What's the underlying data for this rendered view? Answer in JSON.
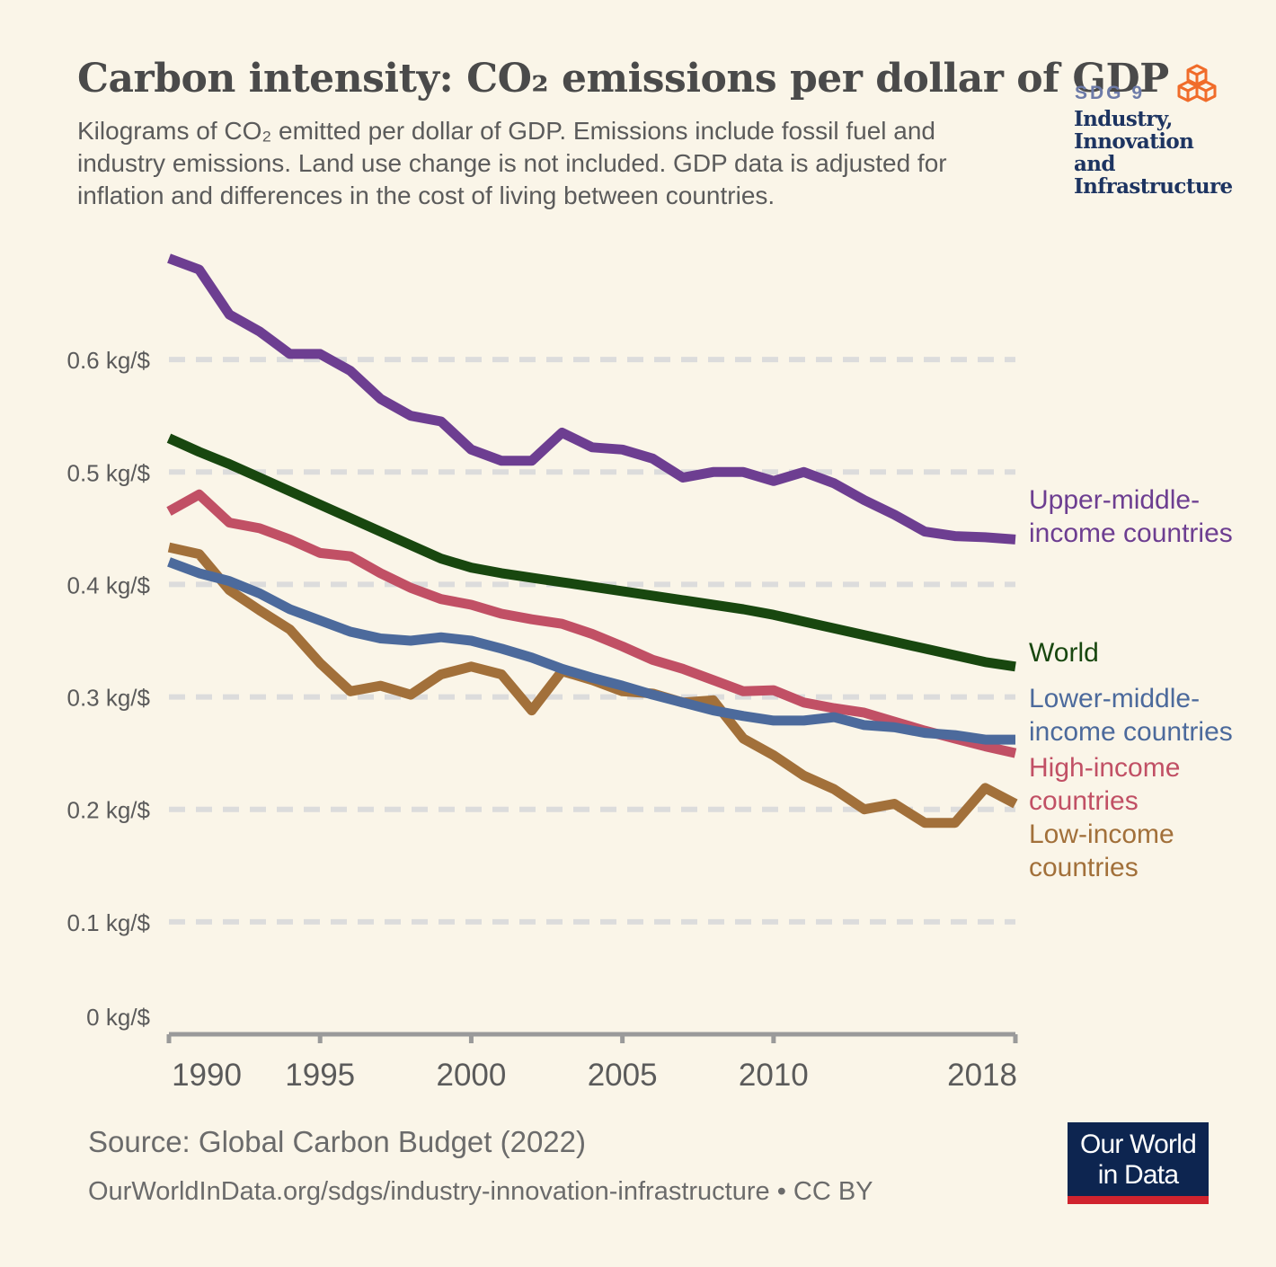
{
  "title": "Carbon intensity: CO₂ emissions per dollar of GDP",
  "subtitle": "Kilograms of CO₂ emitted per dollar of GDP. Emissions include fossil fuel and industry emissions. Land use change is not included. GDP data is adjusted for inflation and differences in the cost of living between countries.",
  "sdg": {
    "label": "SDG 9",
    "name": "Industry, Innovation and Infrastructure"
  },
  "source": "Source: Global Carbon Budget (2022)",
  "footer_url": "OurWorldInData.org/sdgs/industry-innovation-infrastructure • CC BY",
  "logo": {
    "line1": "Our World",
    "line2": "in Data"
  },
  "colors": {
    "background": "#faf5e8",
    "grid": "#dcdcdc",
    "axis": "#9a9a9a",
    "upper_middle": "#6d3e91",
    "world": "#18470f",
    "lower_middle": "#4c6a9c",
    "high": "#c15065",
    "low": "#a2703a"
  },
  "chart_data": {
    "type": "line",
    "title": "Carbon intensity: CO₂ emissions per dollar of GDP",
    "ylabel": "kg/$",
    "ylim": [
      0,
      0.7
    ],
    "xlim": [
      1990,
      2018
    ],
    "grid": true,
    "y_ticks": [
      0,
      0.1,
      0.2,
      0.3,
      0.4,
      0.5,
      0.6
    ],
    "y_tick_labels": [
      "0 kg/$",
      "0.1 kg/$",
      "0.2 kg/$",
      "0.3 kg/$",
      "0.4 kg/$",
      "0.5 kg/$",
      "0.6 kg/$"
    ],
    "x_ticks": [
      1990,
      1995,
      2000,
      2005,
      2010,
      2018
    ],
    "x_tick_labels": [
      "1990",
      "1995",
      "2000",
      "2005",
      "2010",
      "2018"
    ],
    "x": [
      1990,
      1991,
      1992,
      1993,
      1994,
      1995,
      1996,
      1997,
      1998,
      1999,
      2000,
      2001,
      2002,
      2003,
      2004,
      2005,
      2006,
      2007,
      2008,
      2009,
      2010,
      2011,
      2012,
      2013,
      2014,
      2015,
      2016,
      2017,
      2018
    ],
    "series": [
      {
        "name": "Upper-middle-income countries",
        "label_lines": [
          "Upper-middle-",
          "income countries"
        ],
        "color_key": "upper_middle",
        "values": [
          0.69,
          0.68,
          0.64,
          0.625,
          0.605,
          0.605,
          0.59,
          0.565,
          0.55,
          0.545,
          0.52,
          0.51,
          0.51,
          0.535,
          0.522,
          0.52,
          0.512,
          0.495,
          0.5,
          0.5,
          0.492,
          0.5,
          0.49,
          0.475,
          0.462,
          0.447,
          0.443,
          0.442,
          0.44
        ]
      },
      {
        "name": "World",
        "label_lines": [
          "World"
        ],
        "color_key": "world",
        "values": [
          0.53,
          0.518,
          0.507,
          0.495,
          0.483,
          0.471,
          0.459,
          0.447,
          0.435,
          0.423,
          0.415,
          0.41,
          0.406,
          0.402,
          0.398,
          0.394,
          0.39,
          0.386,
          0.382,
          0.378,
          0.373,
          0.367,
          0.361,
          0.355,
          0.349,
          0.343,
          0.337,
          0.331,
          0.327
        ]
      },
      {
        "name": "Lower-middle-income countries",
        "label_lines": [
          "Lower-middle-",
          "income countries"
        ],
        "color_key": "lower_middle",
        "values": [
          0.42,
          0.41,
          0.403,
          0.392,
          0.378,
          0.368,
          0.358,
          0.352,
          0.35,
          0.353,
          0.35,
          0.343,
          0.335,
          0.325,
          0.317,
          0.31,
          0.302,
          0.295,
          0.288,
          0.283,
          0.279,
          0.279,
          0.282,
          0.275,
          0.273,
          0.268,
          0.266,
          0.262,
          0.262
        ]
      },
      {
        "name": "High-income countries",
        "label_lines": [
          "High-income",
          "countries"
        ],
        "color_key": "high",
        "values": [
          0.465,
          0.48,
          0.455,
          0.45,
          0.44,
          0.428,
          0.425,
          0.41,
          0.397,
          0.387,
          0.382,
          0.374,
          0.369,
          0.365,
          0.356,
          0.345,
          0.333,
          0.325,
          0.315,
          0.305,
          0.306,
          0.295,
          0.29,
          0.286,
          0.278,
          0.27,
          0.263,
          0.256,
          0.25
        ]
      },
      {
        "name": "Low-income countries",
        "label_lines": [
          "Low-income",
          "countries"
        ],
        "color_key": "low",
        "values": [
          0.433,
          0.427,
          0.395,
          0.377,
          0.36,
          0.33,
          0.305,
          0.31,
          0.302,
          0.32,
          0.327,
          0.32,
          0.288,
          0.323,
          0.315,
          0.305,
          0.303,
          0.295,
          0.297,
          0.263,
          0.248,
          0.23,
          0.218,
          0.2,
          0.205,
          0.188,
          0.188,
          0.219,
          0.205
        ]
      }
    ]
  }
}
